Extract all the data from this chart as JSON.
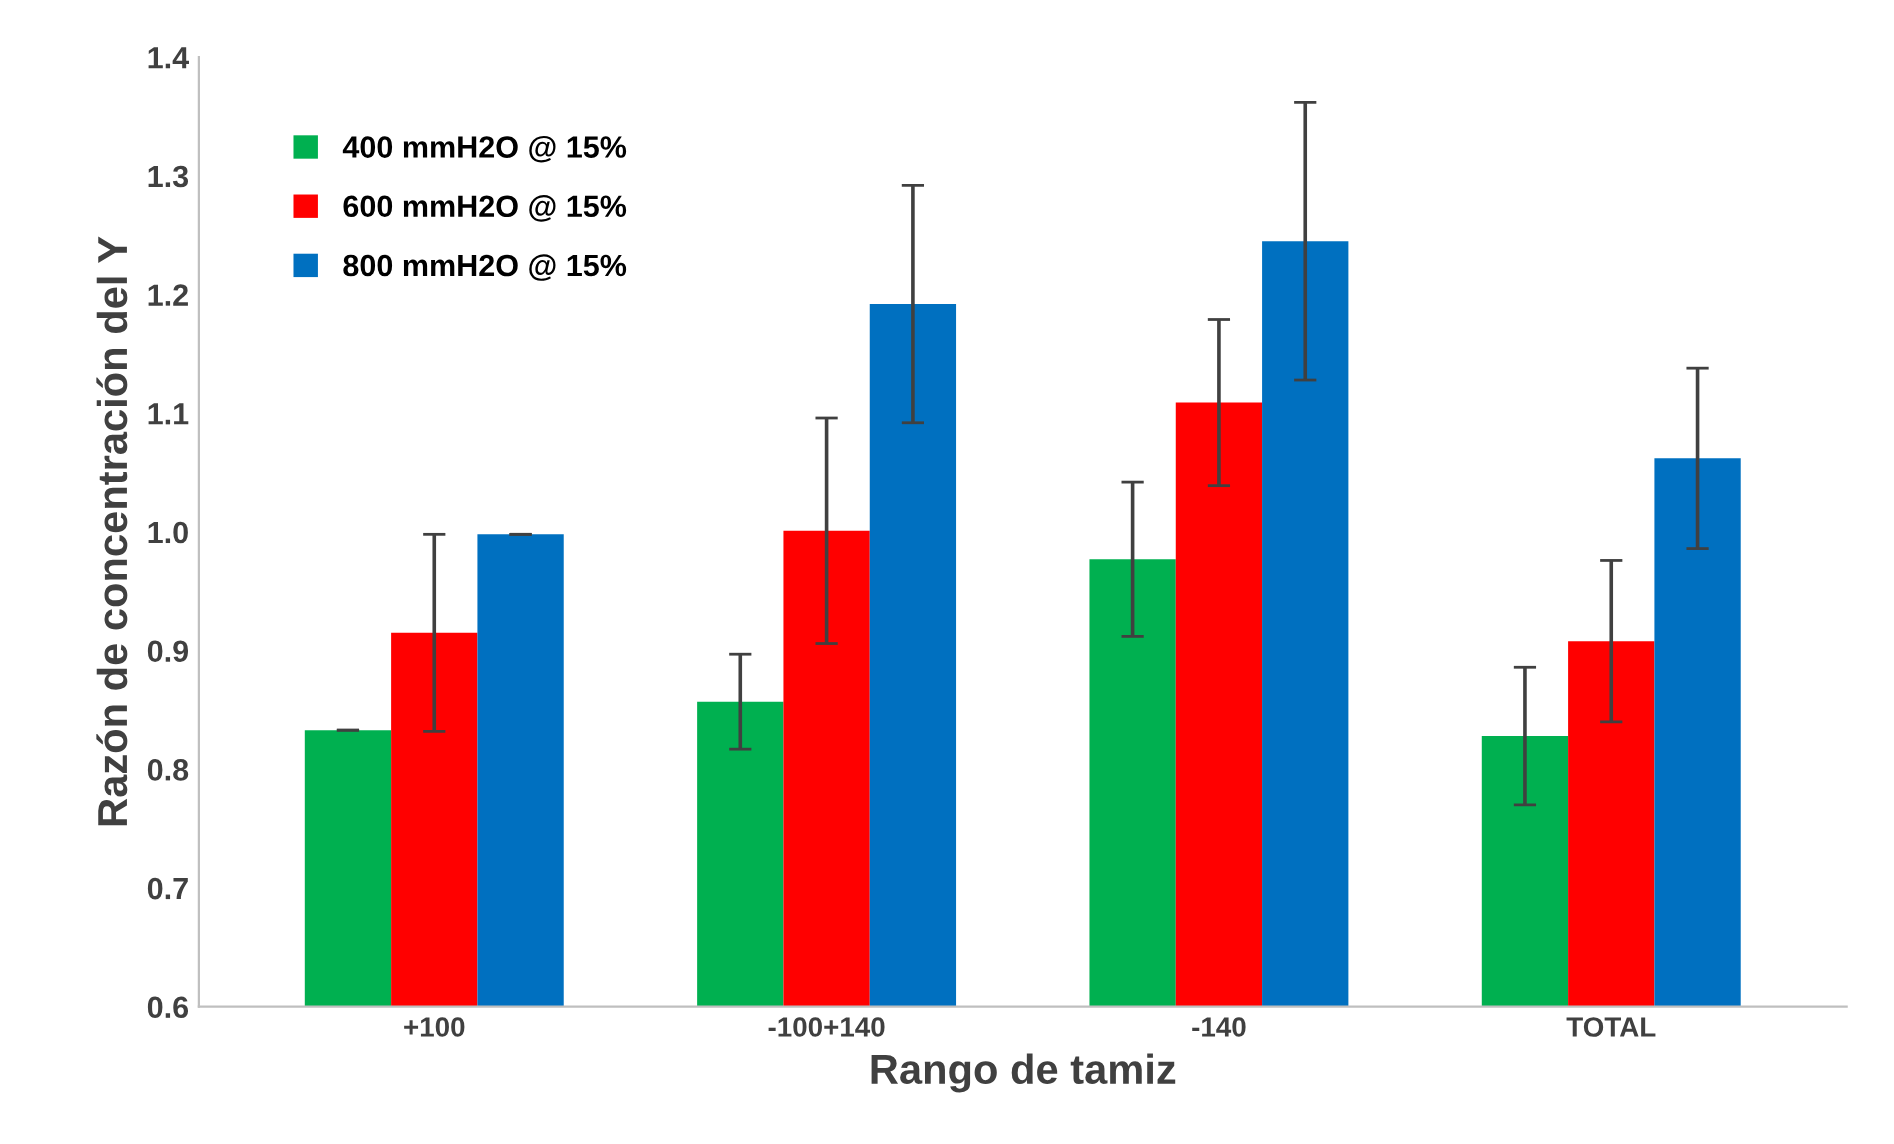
{
  "chart_data": {
    "type": "bar",
    "xlabel": "Rango de tamiz",
    "ylabel": "Razón de concentración del Y",
    "categories": [
      "+100",
      "-100+140",
      "-140",
      "TOTAL"
    ],
    "series": [
      {
        "name": "400 mmH2O @ 15%",
        "color": "#00b050",
        "values": [
          0.833,
          0.857,
          0.977,
          0.828
        ],
        "errors": [
          0,
          0.04,
          0.065,
          0.058
        ]
      },
      {
        "name": "600 mmH2O @ 15%",
        "color": "#ff0000",
        "values": [
          0.915,
          1.001,
          1.109,
          0.908
        ],
        "errors": [
          0.083,
          0.095,
          0.07,
          0.068
        ]
      },
      {
        "name": "800 mmH2O @ 15%",
        "color": "#0070c0",
        "values": [
          0.998,
          1.192,
          1.245,
          1.062
        ],
        "errors": [
          0,
          0.1,
          0.117,
          0.076
        ]
      }
    ],
    "ylim": [
      0.6,
      1.4
    ],
    "yticks": [
      0.6,
      0.7,
      0.8,
      0.9,
      {
        "value": 1,
        "label": "1.0"
      },
      1.1,
      1.2,
      1.3,
      1.4
    ],
    "grid": false,
    "legend": "top left"
  }
}
